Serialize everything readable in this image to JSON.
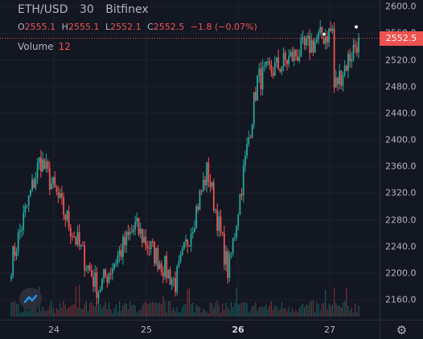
{
  "legend": {
    "symbol": "ETH/USD",
    "interval": "30",
    "exchange": "Bitfinex",
    "open_label": "O",
    "open": "2555.1",
    "high_label": "H",
    "high": "2555.1",
    "low_label": "L",
    "low": "2552.1",
    "close_label": "C",
    "close": "2552.5",
    "change": "−1.8 (−0.07%)",
    "volume_label": "Volume",
    "volume": "12"
  },
  "price_axis": {
    "ticks": [
      "2600.0",
      "2560.0",
      "2520.0",
      "2480.0",
      "2440.0",
      "2400.0",
      "2360.0",
      "2320.0",
      "2280.0",
      "2240.0",
      "2200.0",
      "2160.0"
    ],
    "last_price_label": "2552.5"
  },
  "time_axis": {
    "ticks": [
      {
        "label": "24",
        "bold": false
      },
      {
        "label": "25",
        "bold": false
      },
      {
        "label": "26",
        "bold": true
      },
      {
        "label": "27",
        "bold": false
      }
    ]
  },
  "colors": {
    "up": "#26a69a",
    "down": "#ef5350",
    "background": "#131722",
    "grid": "#1e222d",
    "text": "#b2b5be"
  },
  "icons": {
    "logo": "tradingview-cloud-icon",
    "settings": "gear-icon"
  },
  "chart_data": {
    "type": "candlestick",
    "instrument": "ETH/USD",
    "interval_minutes": 30,
    "ylim": [
      2130,
      2610
    ],
    "x_tick_dates": [
      "24",
      "25",
      "26",
      "27"
    ],
    "last_price": 2552.5,
    "ohlc_keypoints": [
      {
        "label": "start",
        "close": 2215
      },
      {
        "label": "day24-high",
        "close": 2372
      },
      {
        "label": "day24-low",
        "close": 2175
      },
      {
        "label": "day25-high",
        "close": 2270
      },
      {
        "label": "day25-low",
        "close": 2185
      },
      {
        "label": "day25-rebound",
        "close": 2355
      },
      {
        "label": "day26-dip",
        "close": 2200
      },
      {
        "label": "day26-rally",
        "close": 2490
      },
      {
        "label": "day26-27-high",
        "close": 2565
      },
      {
        "label": "day27-dip",
        "close": 2440
      },
      {
        "label": "end",
        "close": 2552.5
      }
    ]
  }
}
